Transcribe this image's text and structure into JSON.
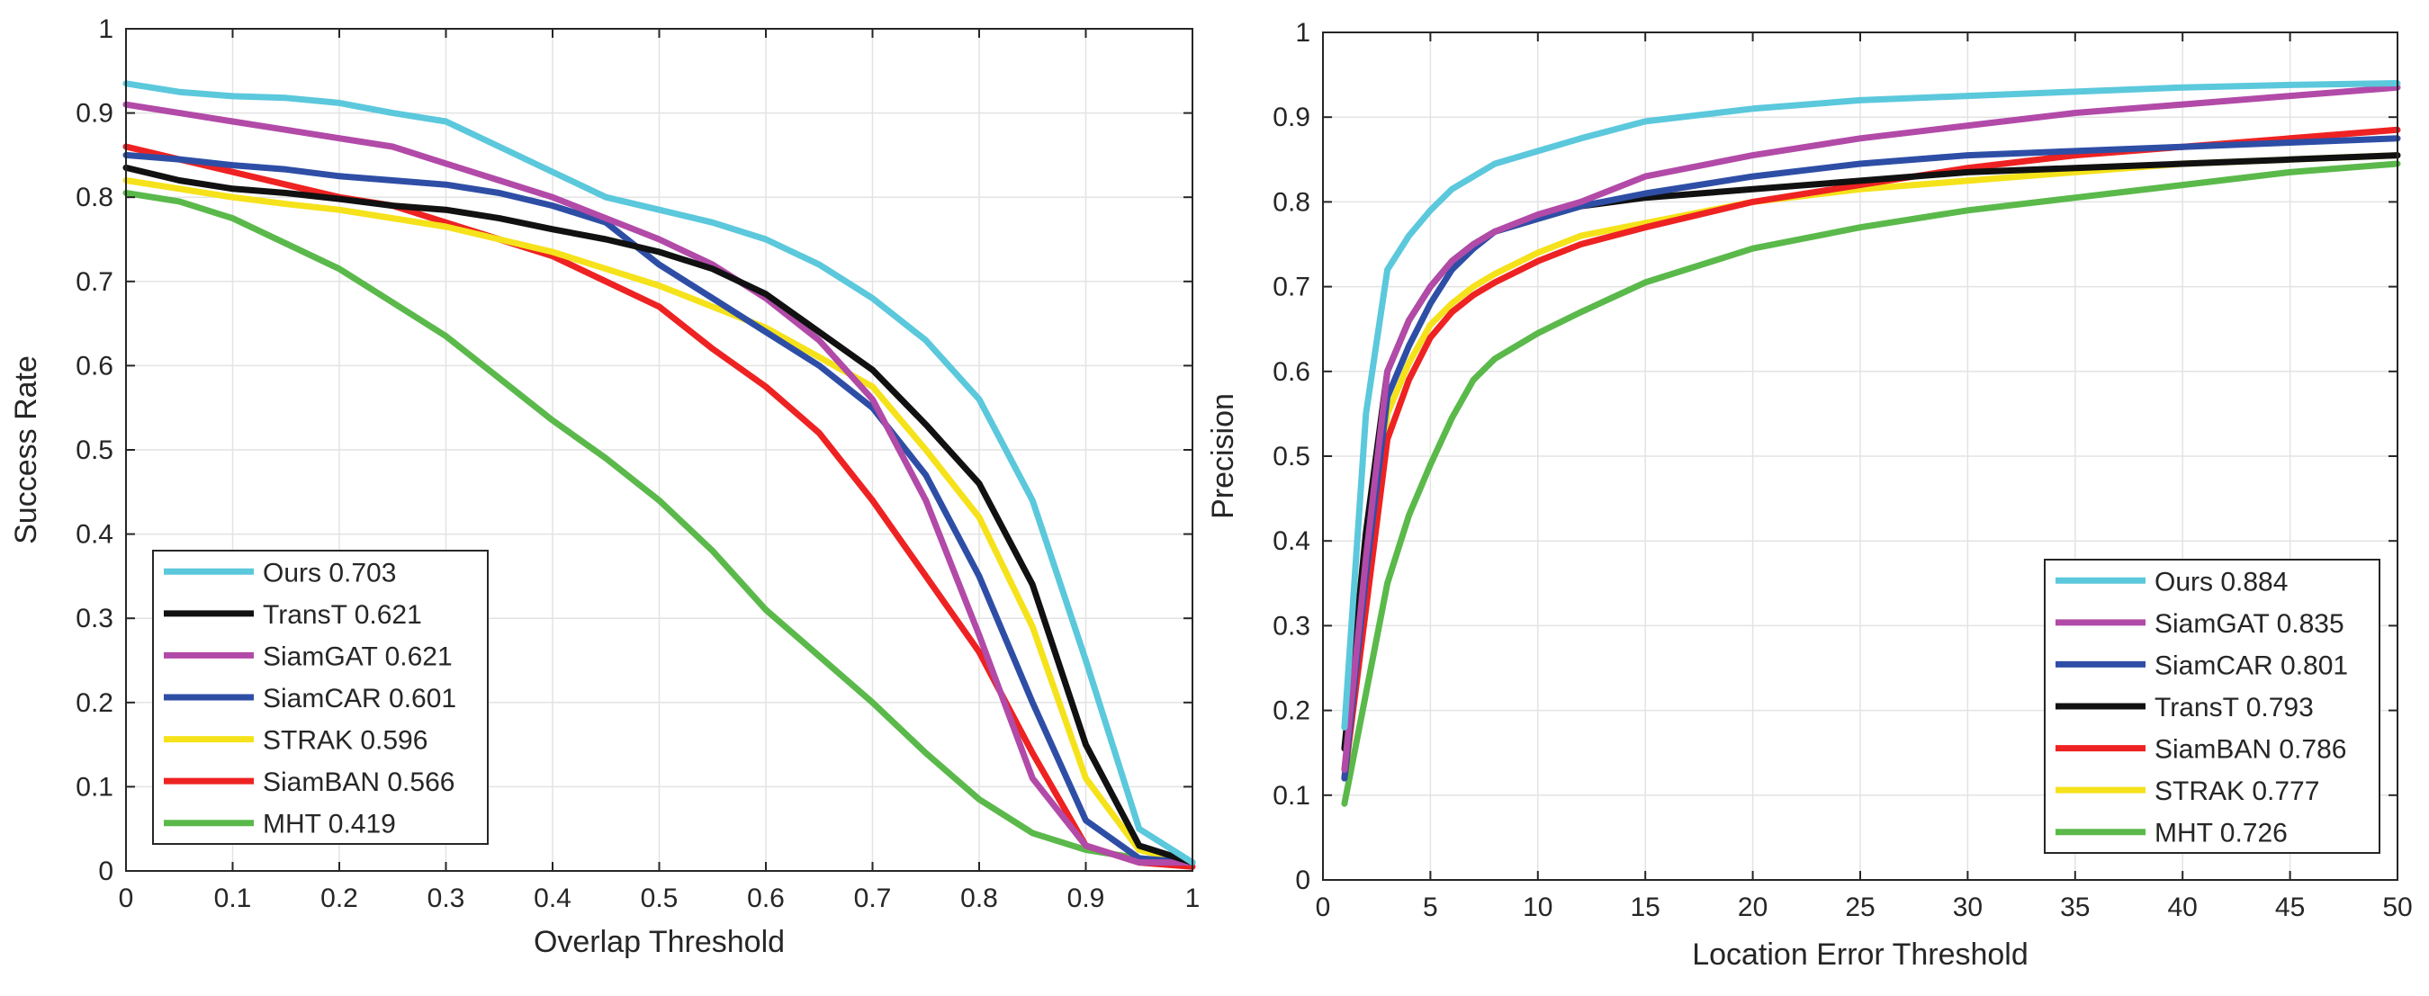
{
  "chart_data": [
    {
      "type": "line",
      "title": "",
      "xlabel": "Overlap Threshold",
      "ylabel": "Success Rate",
      "xlim": [
        0,
        1
      ],
      "ylim": [
        0,
        1
      ],
      "xticks": [
        0,
        0.1,
        0.2,
        0.3,
        0.4,
        0.5,
        0.6,
        0.7,
        0.8,
        0.9,
        1
      ],
      "xtick_labels": [
        "0",
        "0.1",
        "0.2",
        "0.3",
        "0.4",
        "0.5",
        "0.6",
        "0.7",
        "0.8",
        "0.9",
        "1"
      ],
      "yticks": [
        0,
        0.1,
        0.2,
        0.3,
        0.4,
        0.5,
        0.6,
        0.7,
        0.8,
        0.9,
        1
      ],
      "ytick_labels": [
        "0",
        "0.1",
        "0.2",
        "0.3",
        "0.4",
        "0.5",
        "0.6",
        "0.7",
        "0.8",
        "0.9",
        "1"
      ],
      "grid": true,
      "legend_position": "bottom-left",
      "x": [
        0,
        0.05,
        0.1,
        0.15,
        0.2,
        0.25,
        0.3,
        0.35,
        0.4,
        0.45,
        0.5,
        0.55,
        0.6,
        0.65,
        0.7,
        0.75,
        0.8,
        0.85,
        0.9,
        0.95,
        1.0
      ],
      "series": [
        {
          "name": "Ours",
          "legend_label": "Ours 0.703",
          "color": "#5bc8dc",
          "values": [
            0.935,
            0.925,
            0.92,
            0.918,
            0.912,
            0.9,
            0.89,
            0.86,
            0.83,
            0.8,
            0.785,
            0.77,
            0.75,
            0.72,
            0.68,
            0.63,
            0.56,
            0.44,
            0.25,
            0.05,
            0.01
          ]
        },
        {
          "name": "TransT",
          "legend_label": "TransT 0.621",
          "color": "#111111",
          "values": [
            0.835,
            0.82,
            0.81,
            0.805,
            0.798,
            0.79,
            0.785,
            0.775,
            0.762,
            0.75,
            0.735,
            0.715,
            0.685,
            0.64,
            0.595,
            0.53,
            0.46,
            0.34,
            0.15,
            0.03,
            0.01
          ]
        },
        {
          "name": "SiamGAT",
          "legend_label": "SiamGAT 0.621",
          "color": "#b24aa8",
          "values": [
            0.91,
            0.9,
            0.89,
            0.88,
            0.87,
            0.86,
            0.84,
            0.82,
            0.8,
            0.775,
            0.75,
            0.72,
            0.68,
            0.63,
            0.56,
            0.44,
            0.28,
            0.11,
            0.03,
            0.01,
            0.01
          ]
        },
        {
          "name": "SiamCAR",
          "legend_label": "SiamCAR 0.601",
          "color": "#2e4ea6",
          "values": [
            0.85,
            0.845,
            0.838,
            0.833,
            0.825,
            0.82,
            0.815,
            0.805,
            0.79,
            0.77,
            0.72,
            0.68,
            0.64,
            0.6,
            0.55,
            0.47,
            0.35,
            0.2,
            0.06,
            0.015,
            0.01
          ]
        },
        {
          "name": "STRAK",
          "legend_label": "STRAK 0.596",
          "color": "#f5e21a",
          "values": [
            0.82,
            0.81,
            0.8,
            0.792,
            0.785,
            0.775,
            0.765,
            0.75,
            0.735,
            0.715,
            0.695,
            0.67,
            0.645,
            0.61,
            0.575,
            0.5,
            0.42,
            0.29,
            0.11,
            0.025,
            0.01
          ]
        },
        {
          "name": "SiamBAN",
          "legend_label": "SiamBAN 0.566",
          "color": "#ee2222",
          "values": [
            0.86,
            0.845,
            0.83,
            0.815,
            0.8,
            0.79,
            0.77,
            0.75,
            0.73,
            0.7,
            0.67,
            0.62,
            0.575,
            0.52,
            0.44,
            0.35,
            0.26,
            0.14,
            0.03,
            0.01,
            0.005
          ]
        },
        {
          "name": "MHT",
          "legend_label": "MHT 0.419",
          "color": "#5ab94a",
          "values": [
            0.805,
            0.795,
            0.775,
            0.745,
            0.715,
            0.675,
            0.635,
            0.585,
            0.535,
            0.49,
            0.44,
            0.38,
            0.31,
            0.255,
            0.2,
            0.14,
            0.085,
            0.045,
            0.025,
            0.015,
            0.01
          ]
        }
      ]
    },
    {
      "type": "line",
      "title": "",
      "xlabel": "Location Error Threshold",
      "ylabel": "Precision",
      "xlim": [
        0,
        50
      ],
      "ylim": [
        0,
        1
      ],
      "xticks": [
        0,
        5,
        10,
        15,
        20,
        25,
        30,
        35,
        40,
        45,
        50
      ],
      "xtick_labels": [
        "0",
        "5",
        "10",
        "15",
        "20",
        "25",
        "30",
        "35",
        "40",
        "45",
        "50"
      ],
      "yticks": [
        0,
        0.1,
        0.2,
        0.3,
        0.4,
        0.5,
        0.6,
        0.7,
        0.8,
        0.9,
        1
      ],
      "ytick_labels": [
        "0",
        "0.1",
        "0.2",
        "0.3",
        "0.4",
        "0.5",
        "0.6",
        "0.7",
        "0.8",
        "0.9",
        "1"
      ],
      "grid": true,
      "legend_position": "bottom-right",
      "x": [
        1,
        2,
        3,
        4,
        5,
        6,
        7,
        8,
        10,
        12,
        15,
        20,
        25,
        30,
        35,
        40,
        45,
        50
      ],
      "series": [
        {
          "name": "Ours",
          "legend_label": "Ours 0.884",
          "color": "#5bc8dc",
          "values": [
            0.18,
            0.55,
            0.72,
            0.76,
            0.79,
            0.815,
            0.83,
            0.845,
            0.86,
            0.875,
            0.895,
            0.91,
            0.92,
            0.925,
            0.93,
            0.935,
            0.938,
            0.94
          ]
        },
        {
          "name": "SiamGAT",
          "legend_label": "SiamGAT 0.835",
          "color": "#b24aa8",
          "values": [
            0.13,
            0.38,
            0.6,
            0.66,
            0.7,
            0.73,
            0.75,
            0.765,
            0.785,
            0.8,
            0.83,
            0.855,
            0.875,
            0.89,
            0.905,
            0.915,
            0.925,
            0.935
          ]
        },
        {
          "name": "SiamCAR",
          "legend_label": "SiamCAR 0.801",
          "color": "#2e4ea6",
          "values": [
            0.12,
            0.36,
            0.57,
            0.63,
            0.68,
            0.72,
            0.745,
            0.765,
            0.78,
            0.795,
            0.81,
            0.83,
            0.845,
            0.855,
            0.86,
            0.865,
            0.87,
            0.875
          ]
        },
        {
          "name": "TransT",
          "legend_label": "TransT 0.793",
          "color": "#111111",
          "values": [
            0.155,
            0.41,
            0.6,
            0.66,
            0.7,
            0.73,
            0.75,
            0.765,
            0.78,
            0.795,
            0.805,
            0.815,
            0.825,
            0.835,
            0.84,
            0.845,
            0.85,
            0.855
          ]
        },
        {
          "name": "SiamBAN",
          "legend_label": "SiamBAN 0.786",
          "color": "#ee2222",
          "values": [
            0.12,
            0.32,
            0.52,
            0.59,
            0.64,
            0.67,
            0.69,
            0.705,
            0.73,
            0.75,
            0.77,
            0.8,
            0.82,
            0.84,
            0.855,
            0.865,
            0.875,
            0.885
          ]
        },
        {
          "name": "STRAK",
          "legend_label": "STRAK 0.777",
          "color": "#f5e21a",
          "values": [
            0.13,
            0.35,
            0.55,
            0.61,
            0.655,
            0.68,
            0.7,
            0.715,
            0.74,
            0.76,
            0.775,
            0.8,
            0.815,
            0.825,
            0.835,
            0.845,
            0.85,
            0.855
          ]
        },
        {
          "name": "MHT",
          "legend_label": "MHT 0.726",
          "color": "#5ab94a",
          "values": [
            0.09,
            0.22,
            0.35,
            0.43,
            0.49,
            0.545,
            0.59,
            0.615,
            0.645,
            0.67,
            0.705,
            0.745,
            0.77,
            0.79,
            0.805,
            0.82,
            0.835,
            0.845
          ]
        }
      ]
    }
  ]
}
